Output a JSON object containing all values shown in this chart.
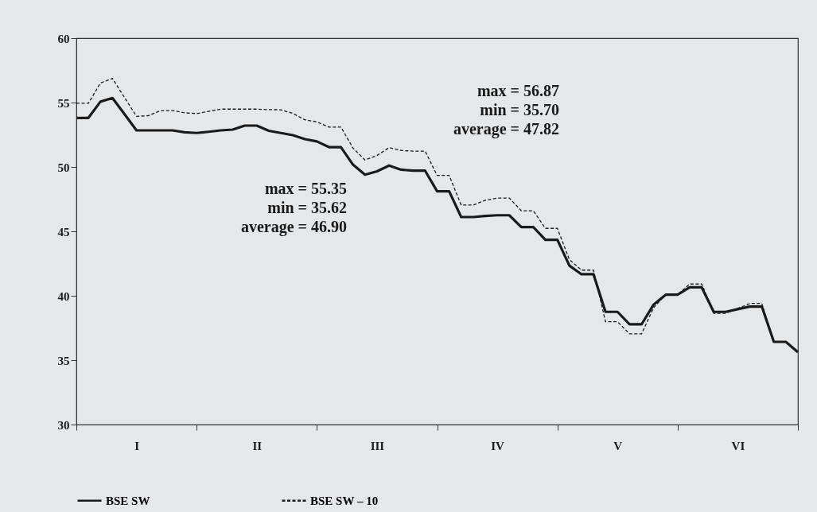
{
  "chart_data": {
    "type": "line",
    "categories": [
      null,
      null,
      null,
      null,
      null,
      "I",
      null,
      null,
      null,
      null,
      null,
      null,
      null,
      null,
      null,
      "II",
      null,
      null,
      null,
      null,
      null,
      null,
      null,
      null,
      null,
      "III",
      null,
      null,
      null,
      null,
      null,
      null,
      null,
      null,
      null,
      "IV",
      null,
      null,
      null,
      null,
      null,
      null,
      null,
      null,
      null,
      "V",
      null,
      null,
      null,
      null,
      null,
      null,
      null,
      null,
      null,
      "VI",
      null,
      null,
      null,
      null,
      null
    ],
    "series": [
      {
        "name": "BSE SW",
        "color": "#1a1a1a",
        "line_style": "solid",
        "values": [
          53.81,
          53.81,
          55.07,
          55.35,
          54.1,
          52.84,
          52.84,
          52.84,
          52.84,
          52.69,
          52.64,
          52.73,
          52.84,
          52.9,
          53.21,
          53.21,
          52.81,
          52.64,
          52.47,
          52.16,
          51.98,
          51.54,
          51.54,
          50.18,
          49.4,
          49.66,
          50.11,
          49.79,
          49.71,
          49.71,
          48.11,
          48.11,
          46.11,
          46.11,
          46.2,
          46.25,
          46.25,
          45.33,
          45.33,
          44.34,
          44.34,
          42.34,
          41.67,
          41.67,
          38.75,
          38.75,
          37.78,
          37.78,
          39.31,
          40.08,
          40.08,
          40.65,
          40.65,
          38.75,
          38.75,
          38.96,
          39.16,
          39.16,
          36.42,
          36.42,
          35.62
        ]
      },
      {
        "name": "BSE SW – 10",
        "color": "#1a1a1a",
        "line_style": "dashed",
        "values": [
          54.94,
          54.94,
          56.52,
          56.87,
          55.4,
          53.93,
          53.98,
          54.38,
          54.38,
          54.21,
          54.14,
          54.32,
          54.49,
          54.49,
          54.49,
          54.49,
          54.45,
          54.44,
          54.16,
          53.66,
          53.5,
          53.1,
          53.1,
          51.47,
          50.54,
          50.89,
          51.5,
          51.28,
          51.23,
          51.23,
          49.34,
          49.34,
          47.04,
          47.04,
          47.41,
          47.59,
          47.59,
          46.6,
          46.6,
          45.23,
          45.23,
          42.8,
          41.99,
          41.99,
          37.98,
          37.98,
          37.04,
          37.04,
          39.07,
          40.08,
          40.08,
          40.91,
          40.91,
          38.64,
          38.64,
          39.02,
          39.4,
          39.4,
          36.42,
          36.42,
          35.7
        ]
      }
    ],
    "ylim": [
      30,
      60
    ],
    "yticks": [
      30,
      35,
      40,
      45,
      50,
      55,
      60
    ],
    "grid": false,
    "legend": "bottom",
    "annotations": [
      "max = 55.35\nmin = 35.62\naverage = 46.90",
      "max = 56.87\nmin = 35.70\naverage = 47.82"
    ]
  }
}
